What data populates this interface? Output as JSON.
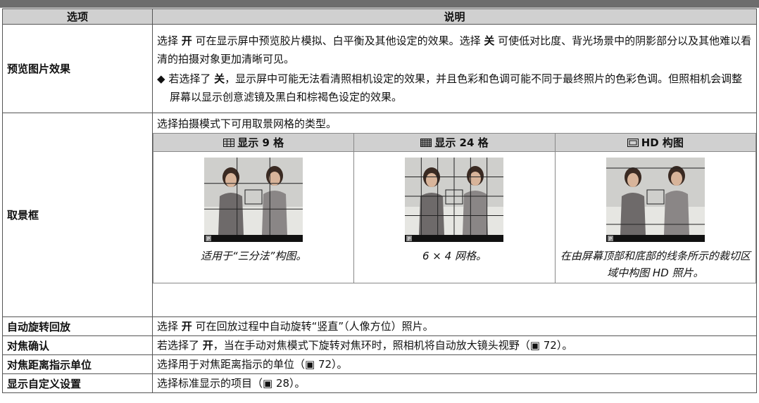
{
  "header": {
    "col_option": "选项",
    "col_description": "说明"
  },
  "rows": [
    {
      "option": "预览图片效果",
      "paragraphs": [
        [
          "选择 ",
          "开",
          " 可在显示屏中预览胶片模拟、白平衡及其他设定的效果。选择 ",
          "关",
          " 可使低对比度、背光场景中的阴影部分以及其他难以看清的拍摄对象更加清晰可见。"
        ]
      ],
      "note": [
        "若选择了 ",
        "关",
        "，显示屏中可能无法看清照相机设定的效果，并且色彩和色调可能不同于最终照片的色彩色调。但照相机会调整屏幕以显示创意滤镜及黑白和棕褐色设定的效果。"
      ]
    },
    {
      "option": "取景框",
      "intro": "选择拍摄模式下可用取景网格的类型。",
      "grids": [
        {
          "label": "显示 9 格",
          "caption": "适用于“三分法”构图。"
        },
        {
          "label": "显示 24 格",
          "caption": "6 × 4 网格。"
        },
        {
          "label": "HD 构图",
          "caption": "在由屏幕顶部和底部的线条所示的裁切区域中构图 HD 照片。"
        }
      ],
      "mode_badge": "P"
    },
    {
      "option": "自动旋转回放",
      "paragraphs": [
        [
          "选择 ",
          "开",
          " 可在回放过程中自动旋转“竖直”（人像方位）照片。"
        ]
      ]
    },
    {
      "option": "对焦确认",
      "paragraphs": [
        [
          "若选择了 ",
          "开",
          "，当在手动对焦模式下旋转对焦环时，照相机将自动放大镜头视野（▣ 72）。"
        ]
      ]
    },
    {
      "option": "对焦距离指示单位",
      "paragraphs": [
        [
          "选择用于对焦距离指示的单位（▣ 72）。"
        ]
      ]
    },
    {
      "option": "显示自定义设置",
      "paragraphs": [
        [
          "选择标准显示的项目（▣ 28）。"
        ]
      ]
    }
  ]
}
